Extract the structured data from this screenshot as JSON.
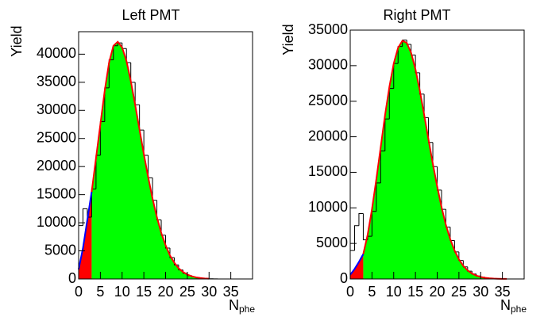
{
  "chart_data": [
    {
      "type": "histogram",
      "title": "Left PMT",
      "ylabel": "Yield",
      "xlabel": "N",
      "xlabel_sub": "phe",
      "bins": [
        0,
        1,
        2,
        3,
        4,
        5,
        6,
        7,
        8,
        9,
        10,
        11,
        12,
        13,
        14,
        15,
        16,
        17,
        18,
        19,
        20,
        21,
        22,
        23,
        24,
        25,
        26,
        27,
        28,
        29,
        30,
        31,
        32,
        33,
        34,
        35,
        36,
        37,
        38,
        39,
        40
      ],
      "counts": [
        9500,
        12500,
        11000,
        16000,
        22000,
        28000,
        34000,
        39000,
        41500,
        42000,
        41000,
        38500,
        35000,
        31000,
        26500,
        22000,
        18000,
        14000,
        10500,
        7800,
        5500,
        3800,
        2500,
        1600,
        1000,
        600,
        350,
        200,
        110,
        60,
        30,
        15,
        8,
        4,
        2,
        1,
        0,
        0,
        0,
        0
      ],
      "color": "#000000",
      "curves": [
        {
          "color": "#0000ff",
          "fill": "#ff0000",
          "x": [
            0,
            1,
            2,
            3
          ],
          "y": [
            1700,
            5500,
            10500,
            15500
          ]
        },
        {
          "color": "#ff0000",
          "fill": "#00ff00",
          "x": [
            3,
            4,
            5,
            6,
            7,
            8,
            9,
            10,
            11,
            12,
            13,
            14,
            15,
            16,
            17,
            18,
            19,
            20,
            21,
            22,
            23,
            24,
            25,
            26,
            27,
            28,
            29,
            30
          ],
          "y": [
            15500,
            21500,
            27500,
            33500,
            38500,
            41500,
            42200,
            41200,
            38800,
            35200,
            31000,
            26600,
            22200,
            18100,
            14300,
            11000,
            8200,
            6000,
            4200,
            2900,
            1900,
            1250,
            780,
            480,
            290,
            170,
            95,
            50
          ]
        }
      ],
      "xlim": [
        0,
        40
      ],
      "xticks": [
        0,
        5,
        10,
        15,
        20,
        25,
        30,
        35
      ],
      "ylim": [
        0,
        44000
      ],
      "yticks": [
        0,
        5000,
        10000,
        15000,
        20000,
        25000,
        30000,
        35000,
        40000
      ]
    },
    {
      "type": "histogram",
      "title": "Right PMT",
      "ylabel": "Yield",
      "xlabel": "N",
      "xlabel_sub": "phe",
      "bins": [
        0,
        1,
        2,
        3,
        4,
        5,
        6,
        7,
        8,
        9,
        10,
        11,
        12,
        13,
        14,
        15,
        16,
        17,
        18,
        19,
        20,
        21,
        22,
        23,
        24,
        25,
        26,
        27,
        28,
        29,
        30,
        31,
        32,
        33,
        34,
        35,
        36,
        37,
        38,
        39,
        40
      ],
      "counts": [
        4000,
        7500,
        9200,
        5500,
        6000,
        9500,
        13500,
        18000,
        22500,
        26800,
        30300,
        32700,
        33600,
        33000,
        31500,
        29000,
        26000,
        22700,
        19200,
        15800,
        12500,
        9800,
        7300,
        5400,
        3800,
        2600,
        1700,
        1100,
        700,
        420,
        250,
        140,
        80,
        40,
        20,
        10,
        5,
        2,
        1,
        0
      ],
      "color": "#000000",
      "curves": [
        {
          "color": "#0000ff",
          "fill": "#ff0000",
          "x": [
            0,
            1,
            2,
            3
          ],
          "y": [
            600,
            1400,
            2400,
            3500
          ]
        },
        {
          "color": "#ff0000",
          "fill": "#00ff00",
          "x": [
            3,
            4,
            5,
            6,
            7,
            8,
            9,
            10,
            11,
            12,
            13,
            14,
            15,
            16,
            17,
            18,
            19,
            20,
            21,
            22,
            23,
            24,
            25,
            26,
            27,
            28,
            29,
            30,
            31,
            32,
            33,
            34,
            35,
            36
          ],
          "y": [
            3500,
            6200,
            9800,
            14000,
            18500,
            23000,
            27000,
            30300,
            32500,
            33500,
            33200,
            31800,
            29500,
            26500,
            23100,
            19600,
            16200,
            13000,
            10100,
            7600,
            5600,
            4000,
            2750,
            1850,
            1200,
            760,
            470,
            280,
            165,
            95,
            52,
            28,
            15,
            8
          ]
        }
      ],
      "xlim": [
        0,
        40
      ],
      "xticks": [
        0,
        5,
        10,
        15,
        20,
        25,
        30,
        35
      ],
      "ylim": [
        0,
        35000
      ],
      "yticks": [
        0,
        5000,
        10000,
        15000,
        20000,
        25000,
        30000,
        35000
      ]
    }
  ]
}
